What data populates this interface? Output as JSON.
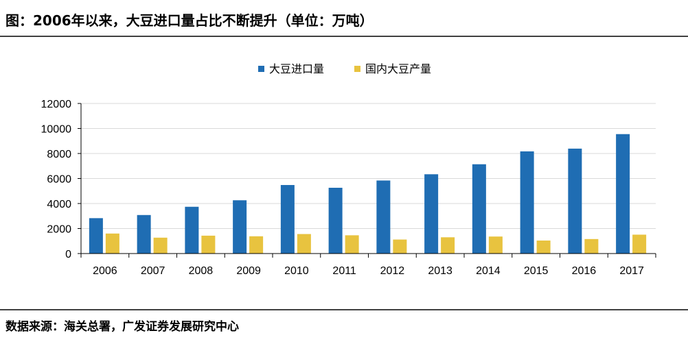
{
  "header": {
    "title": "图：2006年以来，大豆进口量占比不断提升（单位：万吨）"
  },
  "footer": {
    "source": "数据来源：海关总署，广发证券发展研究中心"
  },
  "chart_data": {
    "type": "bar",
    "title": "图：2006年以来，大豆进口量占比不断提升（单位：万吨）",
    "xlabel": "",
    "ylabel": "",
    "categories": [
      "2006",
      "2007",
      "2008",
      "2009",
      "2010",
      "2011",
      "2012",
      "2013",
      "2014",
      "2015",
      "2016",
      "2017"
    ],
    "series": [
      {
        "name": "大豆进口量",
        "color": "#1f6db3",
        "values": [
          2830,
          3080,
          3740,
          4260,
          5480,
          5260,
          5840,
          6340,
          7140,
          8170,
          8390,
          9550
        ]
      },
      {
        "name": "国内大豆产量",
        "color": "#e8c33f",
        "values": [
          1600,
          1270,
          1430,
          1380,
          1560,
          1460,
          1120,
          1300,
          1360,
          1040,
          1160,
          1510
        ]
      }
    ],
    "ylim": [
      0,
      12000
    ],
    "yticks": [
      0,
      2000,
      4000,
      6000,
      8000,
      10000,
      12000
    ],
    "grid": true,
    "legend_position": "top-center"
  }
}
